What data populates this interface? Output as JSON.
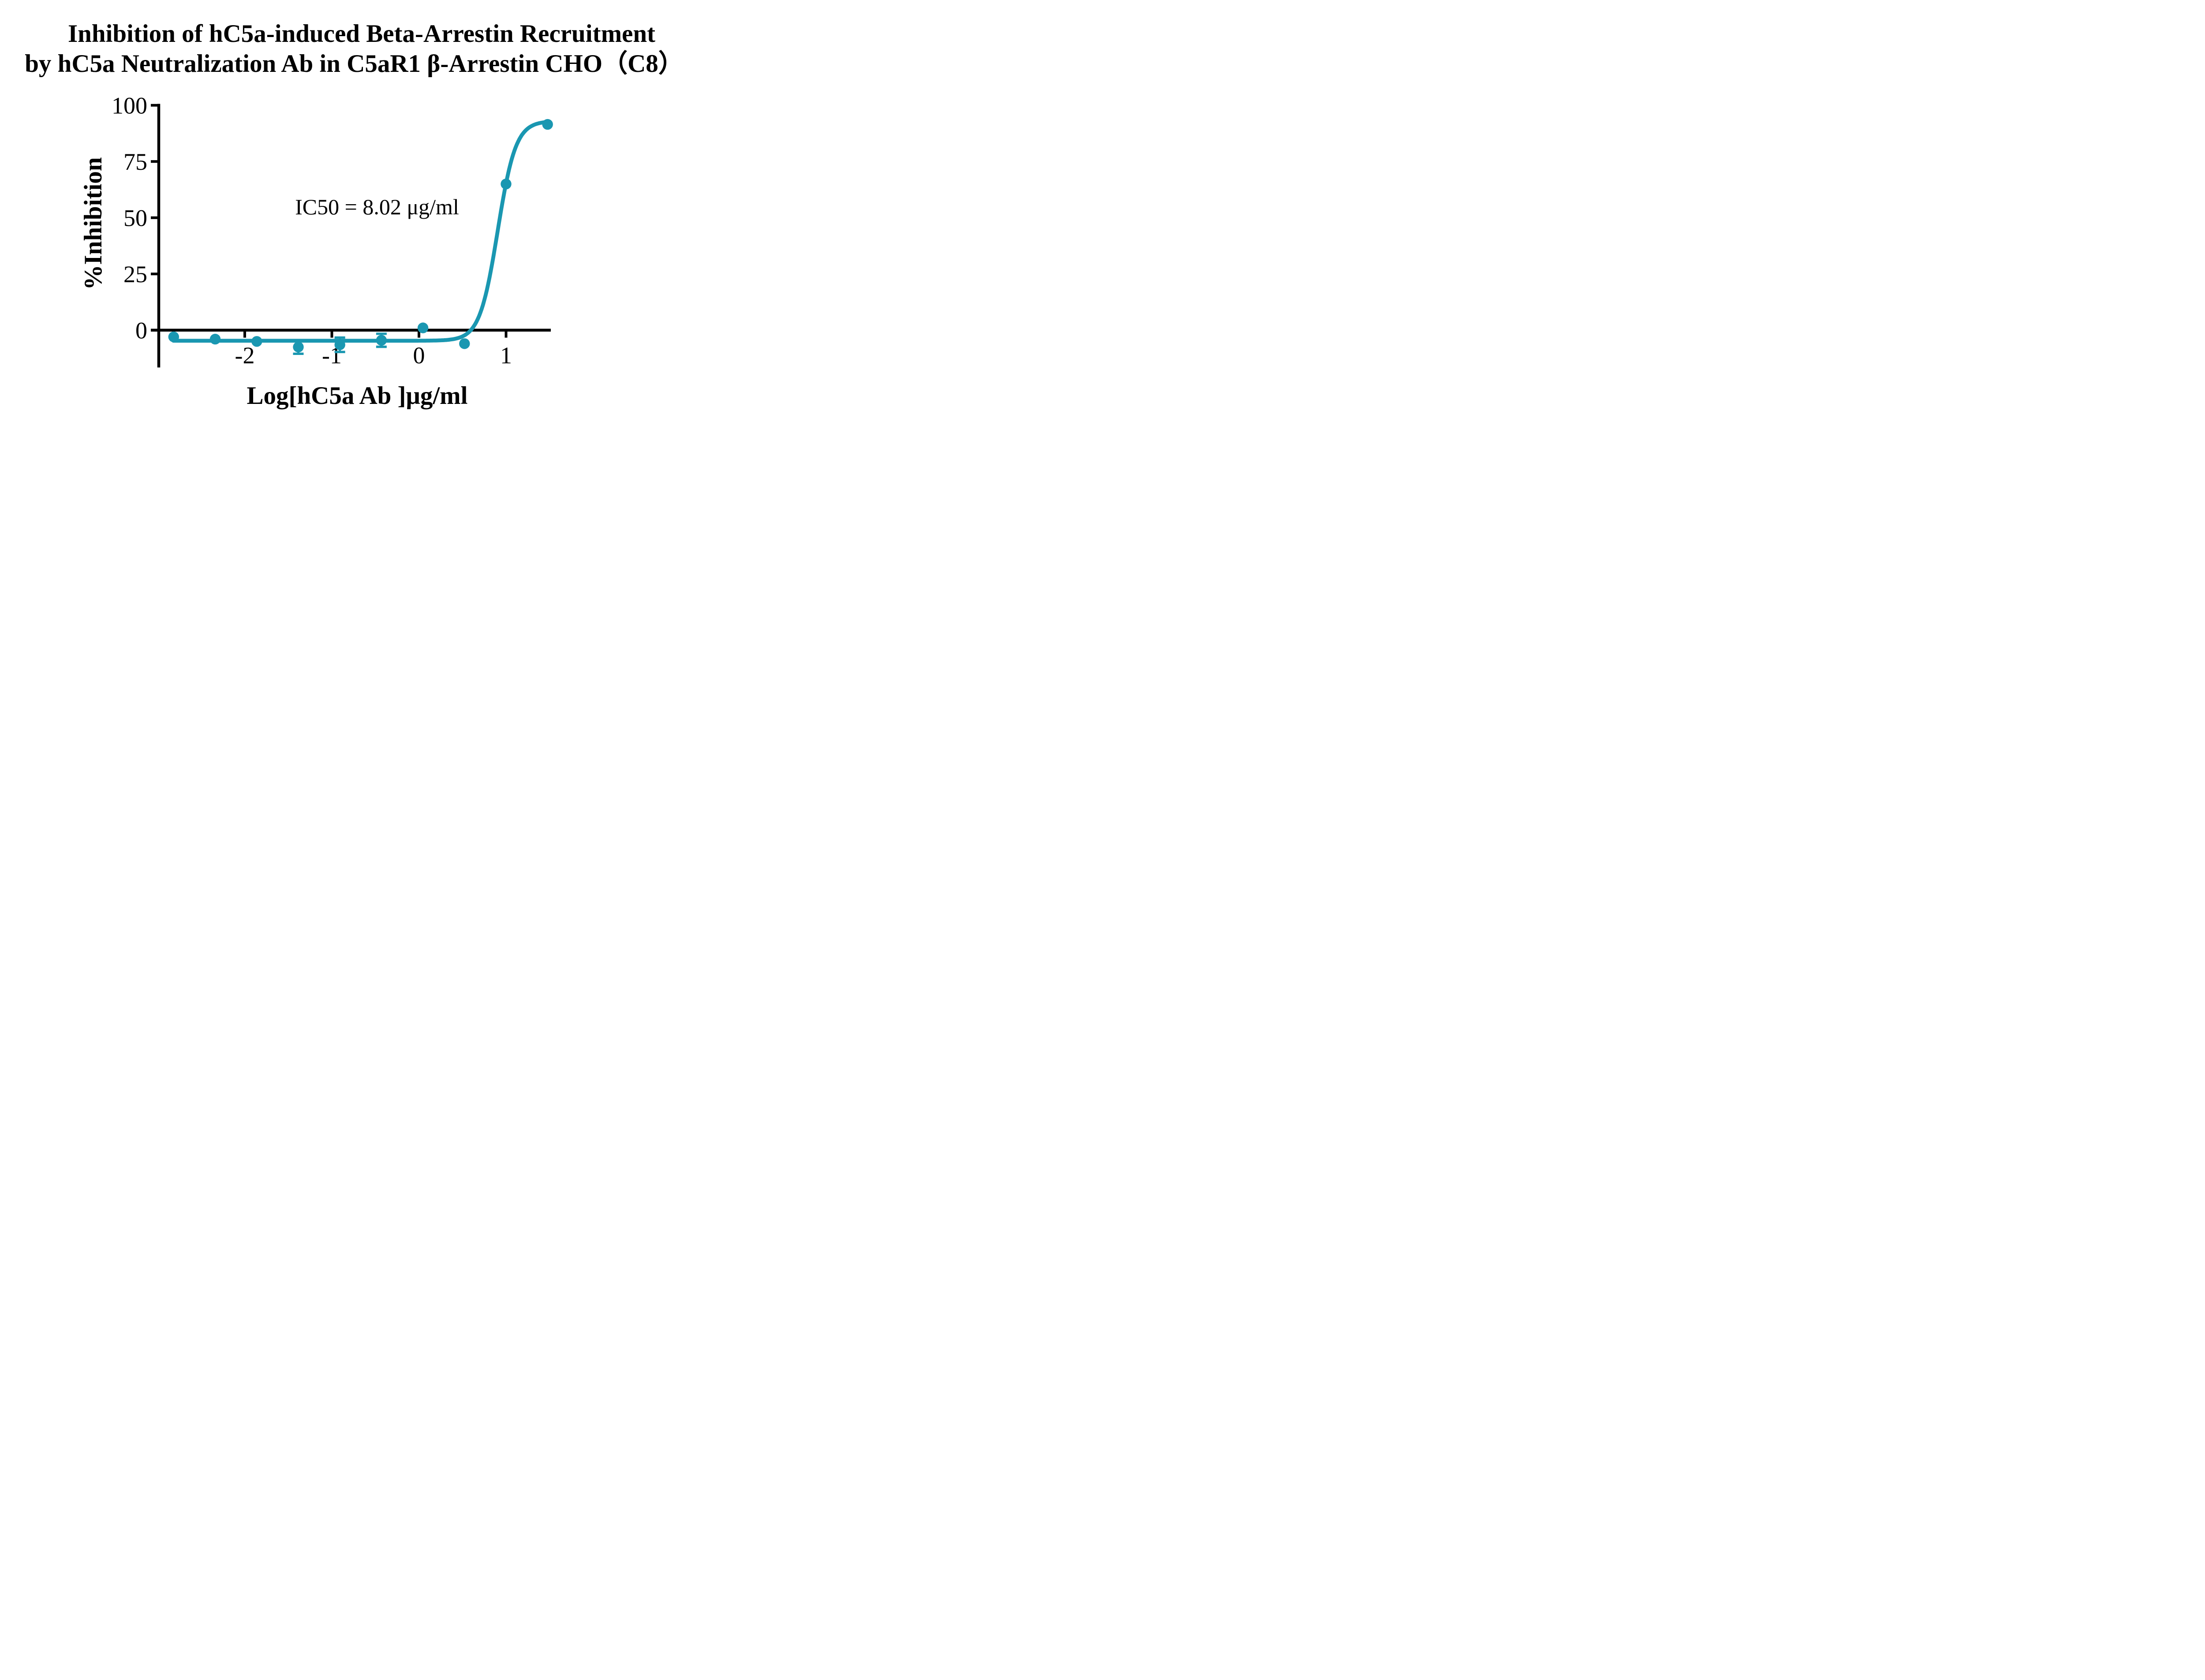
{
  "title": {
    "line1": "Inhibition of hC5a-induced Beta-Arrestin Recruitment",
    "line2": "by hC5a Neutralization Ab in C5aR1 β-Arrestin CHO（C8）"
  },
  "chart_data": {
    "type": "scatter",
    "title": "Inhibition of hC5a-induced Beta-Arrestin Recruitment by hC5a Neutralization Ab in C5aR1 β-Arrestin CHO（C8）",
    "xlabel": "Log[hC5a Ab ]μg/ml",
    "ylabel": "%Inhibition",
    "annotation": "IC50 = 8.02 μg/ml",
    "ic50_ug_per_ml": 8.02,
    "x_ticks": [
      -2,
      -1,
      0,
      1
    ],
    "y_ticks": [
      0,
      25,
      50,
      75,
      100
    ],
    "xlim": [
      -2.99,
      1.52
    ],
    "ylim": [
      0,
      100
    ],
    "y_axis_drawn_min": -16.6,
    "grid": false,
    "legend_position": "none",
    "colors": {
      "curve": "#1A97B1",
      "axis": "#000000",
      "text": "#000000"
    },
    "series": [
      {
        "name": "hC5a neutralization Ab",
        "marker": "circle",
        "color": "#1A97B1",
        "points": [
          {
            "x": -2.816,
            "y": -3
          },
          {
            "x": -2.339,
            "y": -4
          },
          {
            "x": -1.862,
            "y": -5
          },
          {
            "x": -1.385,
            "y": -7.5,
            "err": 3.0
          },
          {
            "x": -0.908,
            "y": -6.5,
            "err": 3.2
          },
          {
            "x": -0.431,
            "y": -4.5,
            "err": 2.9
          },
          {
            "x": 0.046,
            "y": 1
          },
          {
            "x": 0.523,
            "y": -6
          },
          {
            "x": 1.0,
            "y": 65
          },
          {
            "x": 1.477,
            "y": 91.5
          }
        ]
      }
    ],
    "fit_curve": {
      "model": "4PL sigmoid (dose-response inhibition)",
      "bottom": -4.7,
      "top": 93,
      "log_ic50": 0.904,
      "hill_slope": 4.2,
      "x_start": -2.82,
      "x_end": 1.477,
      "color": "#1A97B1"
    }
  }
}
